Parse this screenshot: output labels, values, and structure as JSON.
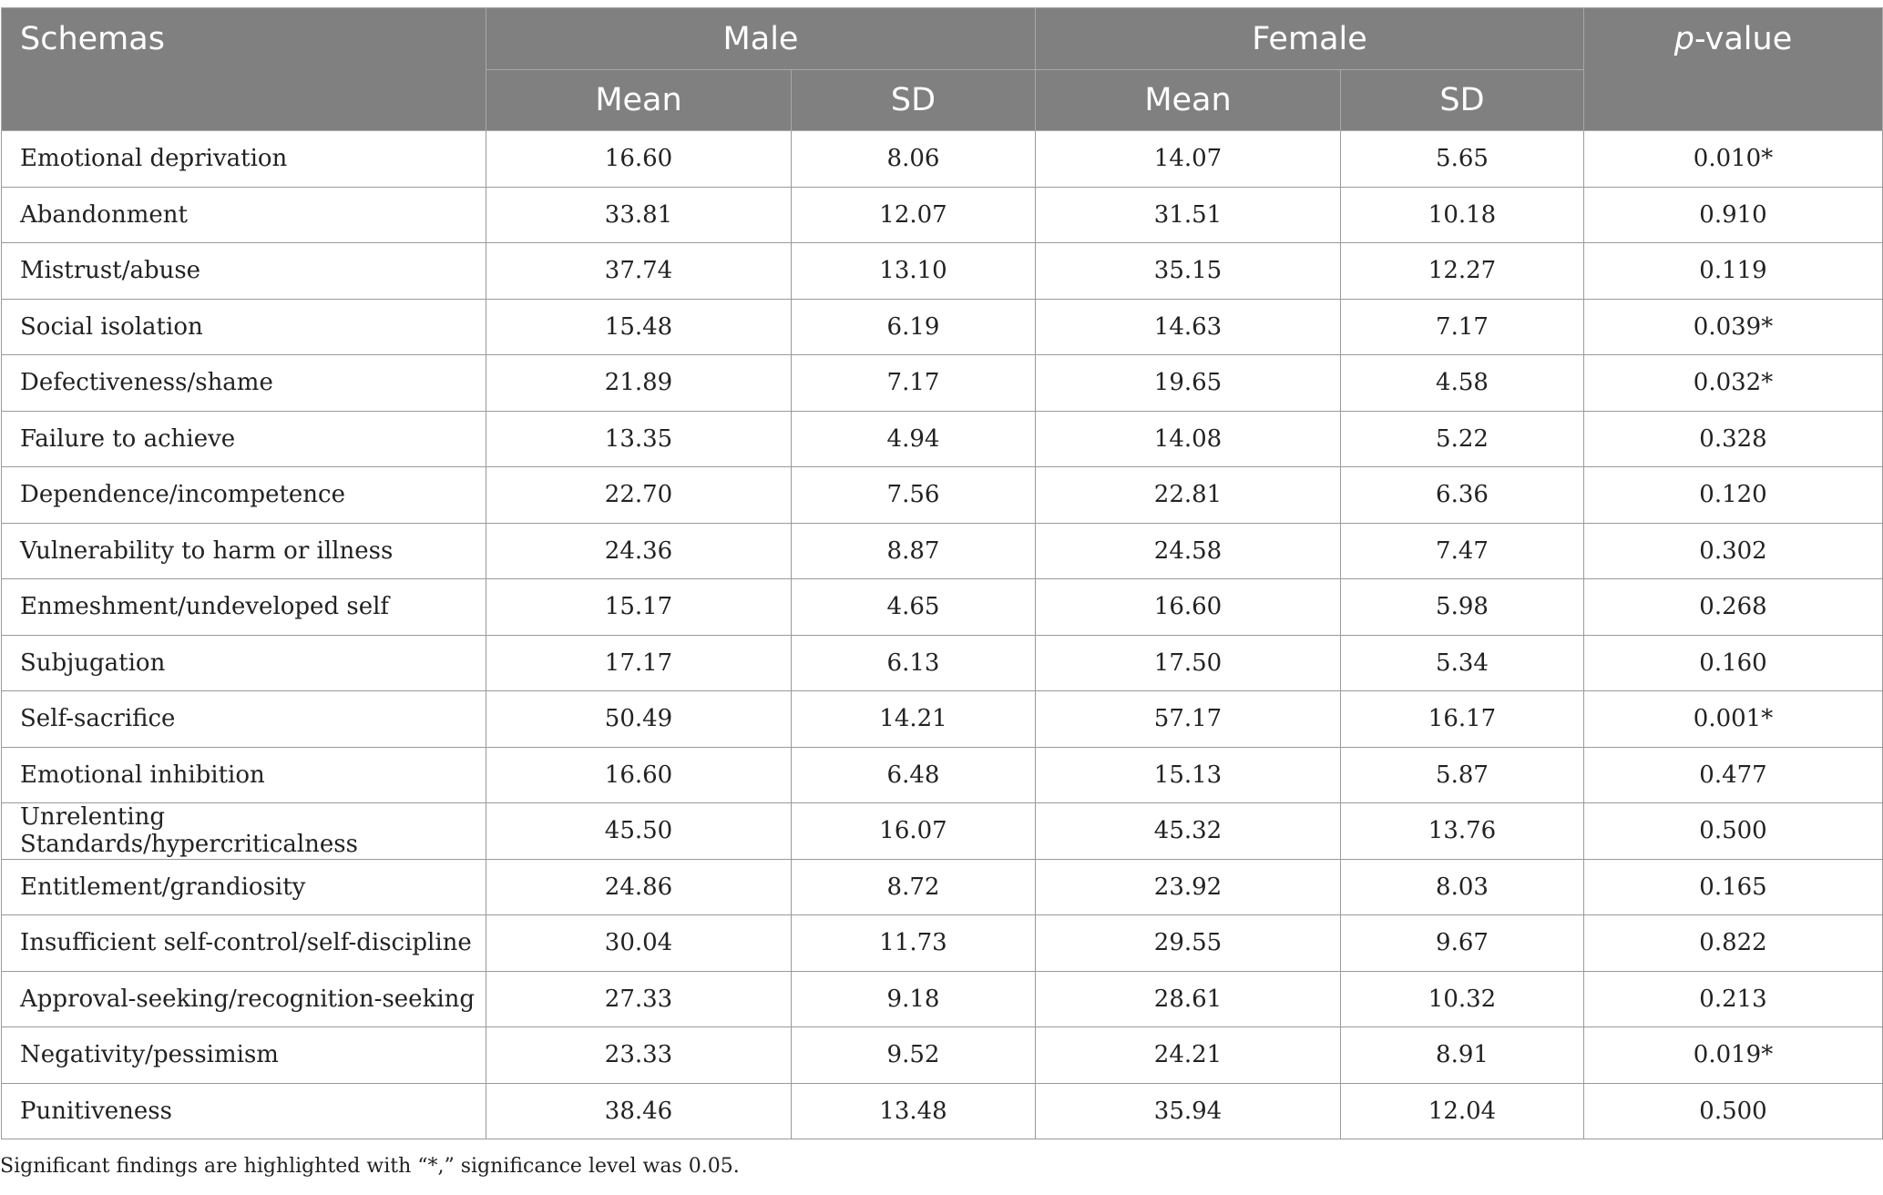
{
  "headers": {
    "schemas": "Schemas",
    "male": "Male",
    "female": "Female",
    "pvalue_italic": "p",
    "pvalue_rest": "-value",
    "mean": "Mean",
    "sd": "SD"
  },
  "rows": [
    {
      "schema": "Emotional deprivation",
      "male_mean": "16.60",
      "male_sd": "8.06",
      "female_mean": "14.07",
      "female_sd": "5.65",
      "p": "0.010*"
    },
    {
      "schema": "Abandonment",
      "male_mean": "33.81",
      "male_sd": "12.07",
      "female_mean": "31.51",
      "female_sd": "10.18",
      "p": "0.910"
    },
    {
      "schema": "Mistrust/abuse",
      "male_mean": "37.74",
      "male_sd": "13.10",
      "female_mean": "35.15",
      "female_sd": "12.27",
      "p": "0.119"
    },
    {
      "schema": "Social isolation",
      "male_mean": "15.48",
      "male_sd": "6.19",
      "female_mean": "14.63",
      "female_sd": "7.17",
      "p": "0.039*"
    },
    {
      "schema": "Defectiveness/shame",
      "male_mean": "21.89",
      "male_sd": "7.17",
      "female_mean": "19.65",
      "female_sd": "4.58",
      "p": "0.032*"
    },
    {
      "schema": "Failure to achieve",
      "male_mean": "13.35",
      "male_sd": "4.94",
      "female_mean": "14.08",
      "female_sd": "5.22",
      "p": "0.328"
    },
    {
      "schema": "Dependence/incompetence",
      "male_mean": "22.70",
      "male_sd": "7.56",
      "female_mean": "22.81",
      "female_sd": "6.36",
      "p": "0.120"
    },
    {
      "schema": "Vulnerability to harm or illness",
      "male_mean": "24.36",
      "male_sd": "8.87",
      "female_mean": "24.58",
      "female_sd": "7.47",
      "p": "0.302"
    },
    {
      "schema": "Enmeshment/undeveloped self",
      "male_mean": "15.17",
      "male_sd": "4.65",
      "female_mean": "16.60",
      "female_sd": "5.98",
      "p": "0.268"
    },
    {
      "schema": "Subjugation",
      "male_mean": "17.17",
      "male_sd": "6.13",
      "female_mean": "17.50",
      "female_sd": "5.34",
      "p": "0.160"
    },
    {
      "schema": "Self-sacrifice",
      "male_mean": "50.49",
      "male_sd": "14.21",
      "female_mean": "57.17",
      "female_sd": "16.17",
      "p": "0.001*"
    },
    {
      "schema": "Emotional inhibition",
      "male_mean": "16.60",
      "male_sd": "6.48",
      "female_mean": "15.13",
      "female_sd": "5.87",
      "p": "0.477"
    },
    {
      "schema": "Unrelenting Standards/hypercriticalness",
      "male_mean": "45.50",
      "male_sd": "16.07",
      "female_mean": "45.32",
      "female_sd": "13.76",
      "p": "0.500"
    },
    {
      "schema": "Entitlement/grandiosity",
      "male_mean": "24.86",
      "male_sd": "8.72",
      "female_mean": "23.92",
      "female_sd": "8.03",
      "p": "0.165"
    },
    {
      "schema": "Insufficient self-control/self-discipline",
      "male_mean": "30.04",
      "male_sd": "11.73",
      "female_mean": "29.55",
      "female_sd": "9.67",
      "p": "0.822"
    },
    {
      "schema": "Approval-seeking/recognition-seeking",
      "male_mean": "27.33",
      "male_sd": "9.18",
      "female_mean": "28.61",
      "female_sd": "10.32",
      "p": "0.213"
    },
    {
      "schema": "Negativity/pessimism",
      "male_mean": "23.33",
      "male_sd": "9.52",
      "female_mean": "24.21",
      "female_sd": "8.91",
      "p": "0.019*"
    },
    {
      "schema": "Punitiveness",
      "male_mean": "38.46",
      "male_sd": "13.48",
      "female_mean": "35.94",
      "female_sd": "12.04",
      "p": "0.500"
    }
  ],
  "footnote": "Significant findings are highlighted with “*,” significance level was 0.05."
}
